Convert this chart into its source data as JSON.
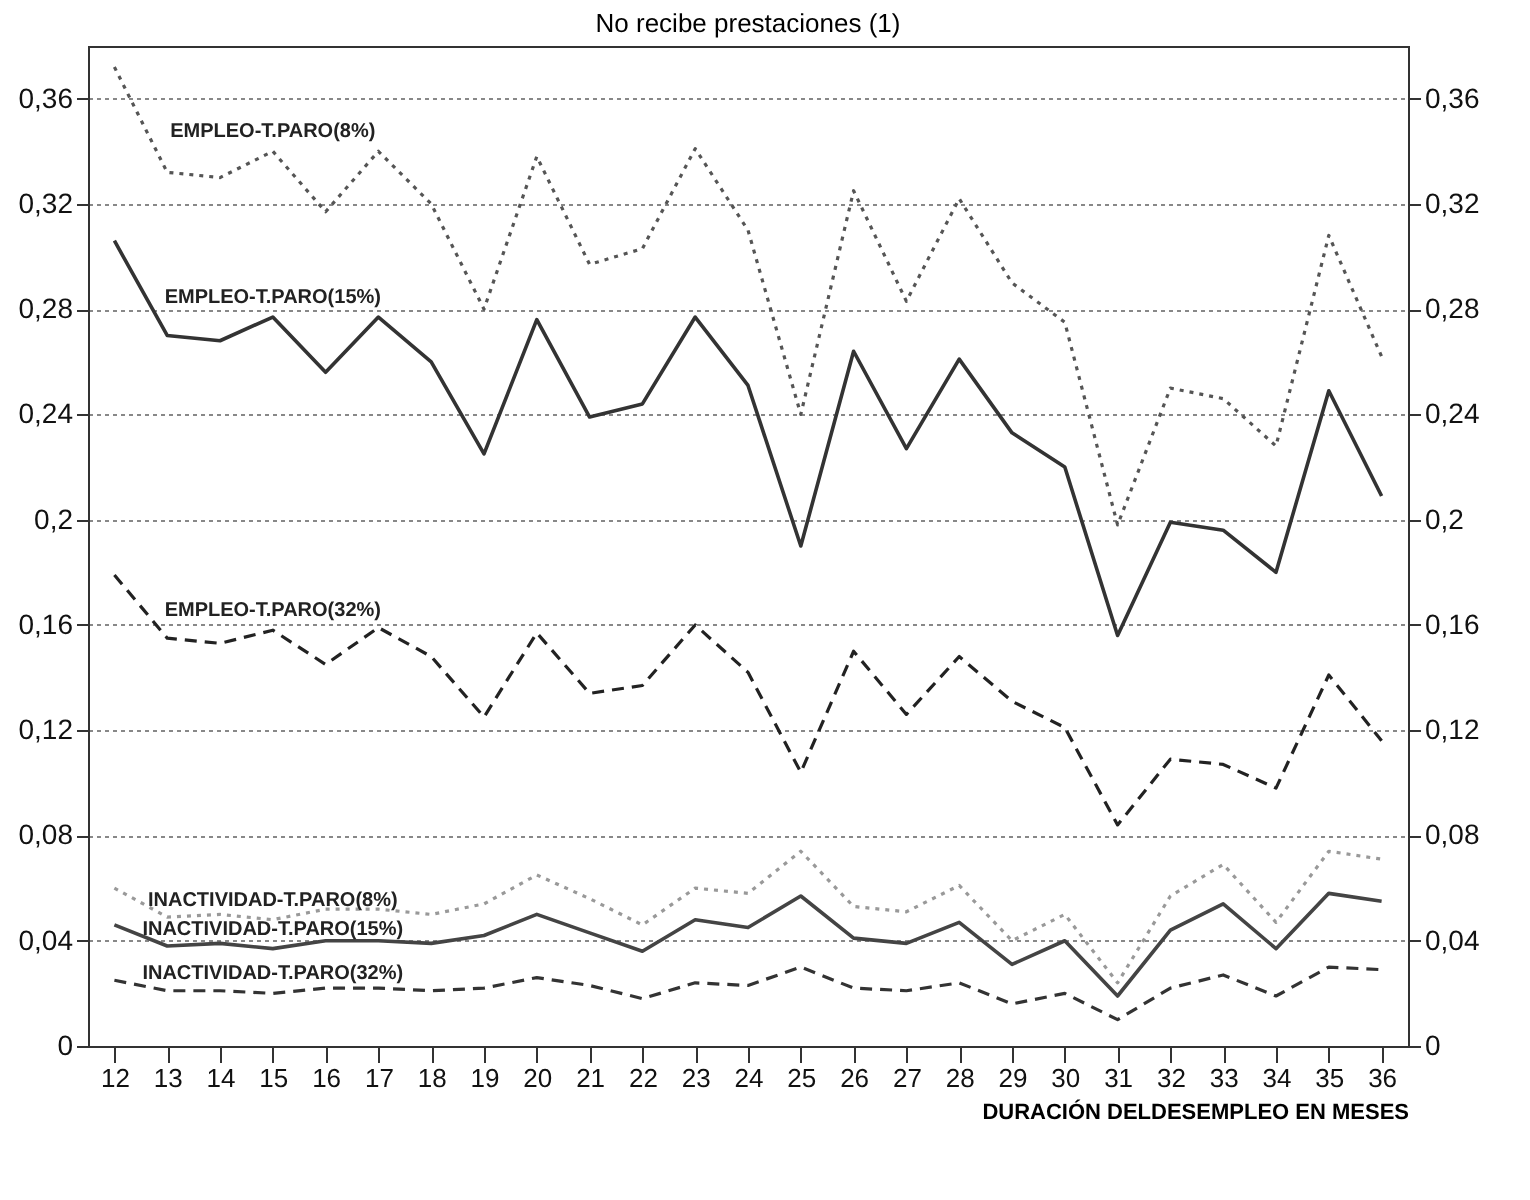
{
  "chart_data": {
    "type": "line",
    "title": "No recibe prestaciones (1)",
    "xlabel": "DURACIÓN DELDESEMPLEO EN MESES",
    "categories": [
      "12",
      "13",
      "14",
      "15",
      "16",
      "17",
      "18",
      "19",
      "20",
      "21",
      "22",
      "23",
      "24",
      "25",
      "26",
      "27",
      "28",
      "29",
      "30",
      "31",
      "32",
      "33",
      "34",
      "35",
      "36"
    ],
    "series": [
      {
        "name": "EMPLEO-T.PARO(8%)",
        "color": "#555555",
        "line_style": "dotted",
        "values": [
          0.372,
          0.332,
          0.33,
          0.34,
          0.317,
          0.34,
          0.32,
          0.28,
          0.338,
          0.297,
          0.303,
          0.341,
          0.31,
          0.24,
          0.325,
          0.283,
          0.322,
          0.29,
          0.275,
          0.198,
          0.25,
          0.246,
          0.228,
          0.308,
          0.262
        ]
      },
      {
        "name": "EMPLEO-T.PARO(15%)",
        "color": "#333333",
        "line_style": "solid",
        "values": [
          0.306,
          0.27,
          0.268,
          0.277,
          0.256,
          0.277,
          0.26,
          0.225,
          0.276,
          0.239,
          0.244,
          0.277,
          0.251,
          0.19,
          0.264,
          0.227,
          0.261,
          0.233,
          0.22,
          0.156,
          0.199,
          0.196,
          0.18,
          0.249,
          0.209
        ]
      },
      {
        "name": "EMPLEO-T.PARO(32%)",
        "color": "#222222",
        "line_style": "dashed",
        "values": [
          0.179,
          0.155,
          0.153,
          0.158,
          0.145,
          0.159,
          0.148,
          0.125,
          0.157,
          0.134,
          0.137,
          0.16,
          0.142,
          0.104,
          0.15,
          0.126,
          0.148,
          0.131,
          0.121,
          0.084,
          0.109,
          0.107,
          0.098,
          0.141,
          0.116
        ]
      },
      {
        "name": "INACTIVIDAD-T.PARO(8%)",
        "color": "#999999",
        "line_style": "dotted",
        "values": [
          0.06,
          0.049,
          0.05,
          0.048,
          0.052,
          0.052,
          0.05,
          0.054,
          0.065,
          0.056,
          0.046,
          0.06,
          0.058,
          0.074,
          0.053,
          0.051,
          0.061,
          0.04,
          0.05,
          0.024,
          0.057,
          0.069,
          0.047,
          0.074,
          0.071
        ]
      },
      {
        "name": "INACTIVIDAD-T.PARO(15%)",
        "color": "#444444",
        "line_style": "solid",
        "values": [
          0.046,
          0.038,
          0.039,
          0.037,
          0.04,
          0.04,
          0.039,
          0.042,
          0.05,
          0.043,
          0.036,
          0.048,
          0.045,
          0.057,
          0.041,
          0.039,
          0.047,
          0.031,
          0.04,
          0.019,
          0.044,
          0.054,
          0.037,
          0.058,
          0.055
        ]
      },
      {
        "name": "INACTIVIDAD-T.PARO(32%)",
        "color": "#333333",
        "line_style": "dashed",
        "values": [
          0.025,
          0.021,
          0.021,
          0.02,
          0.022,
          0.022,
          0.021,
          0.022,
          0.026,
          0.023,
          0.018,
          0.024,
          0.023,
          0.03,
          0.022,
          0.021,
          0.024,
          0.016,
          0.02,
          0.01,
          0.022,
          0.027,
          0.019,
          0.03,
          0.029
        ]
      }
    ],
    "ylim": [
      0,
      0.38
    ],
    "yticks": [
      0,
      {
        "value": 0.04,
        "label": "0,04"
      },
      {
        "value": 0.08,
        "label": "0,08"
      },
      {
        "value": 0.12,
        "label": "0,12"
      },
      {
        "value": 0.16,
        "label": "0,16"
      },
      {
        "value": 0.2,
        "label": "0,2"
      },
      {
        "value": 0.24,
        "label": "0,24"
      },
      {
        "value": 0.28,
        "label": "0,28"
      },
      {
        "value": 0.32,
        "label": "0,32"
      },
      {
        "value": 0.36,
        "label": "0,36"
      }
    ],
    "y2lim": [
      0,
      0.38
    ],
    "y2ticks": [
      0,
      {
        "value": 0.04,
        "label": "0,04"
      },
      {
        "value": 0.08,
        "label": "0,08"
      },
      {
        "value": 0.12,
        "label": "0,12"
      },
      {
        "value": 0.16,
        "label": "0,16"
      },
      {
        "value": 0.2,
        "label": "0,2"
      },
      {
        "value": 0.24,
        "label": "0,24"
      },
      {
        "value": 0.28,
        "label": "0,28"
      },
      {
        "value": 0.32,
        "label": "0,32"
      },
      {
        "value": 0.36,
        "label": "0,36"
      }
    ],
    "grid": "y"
  }
}
